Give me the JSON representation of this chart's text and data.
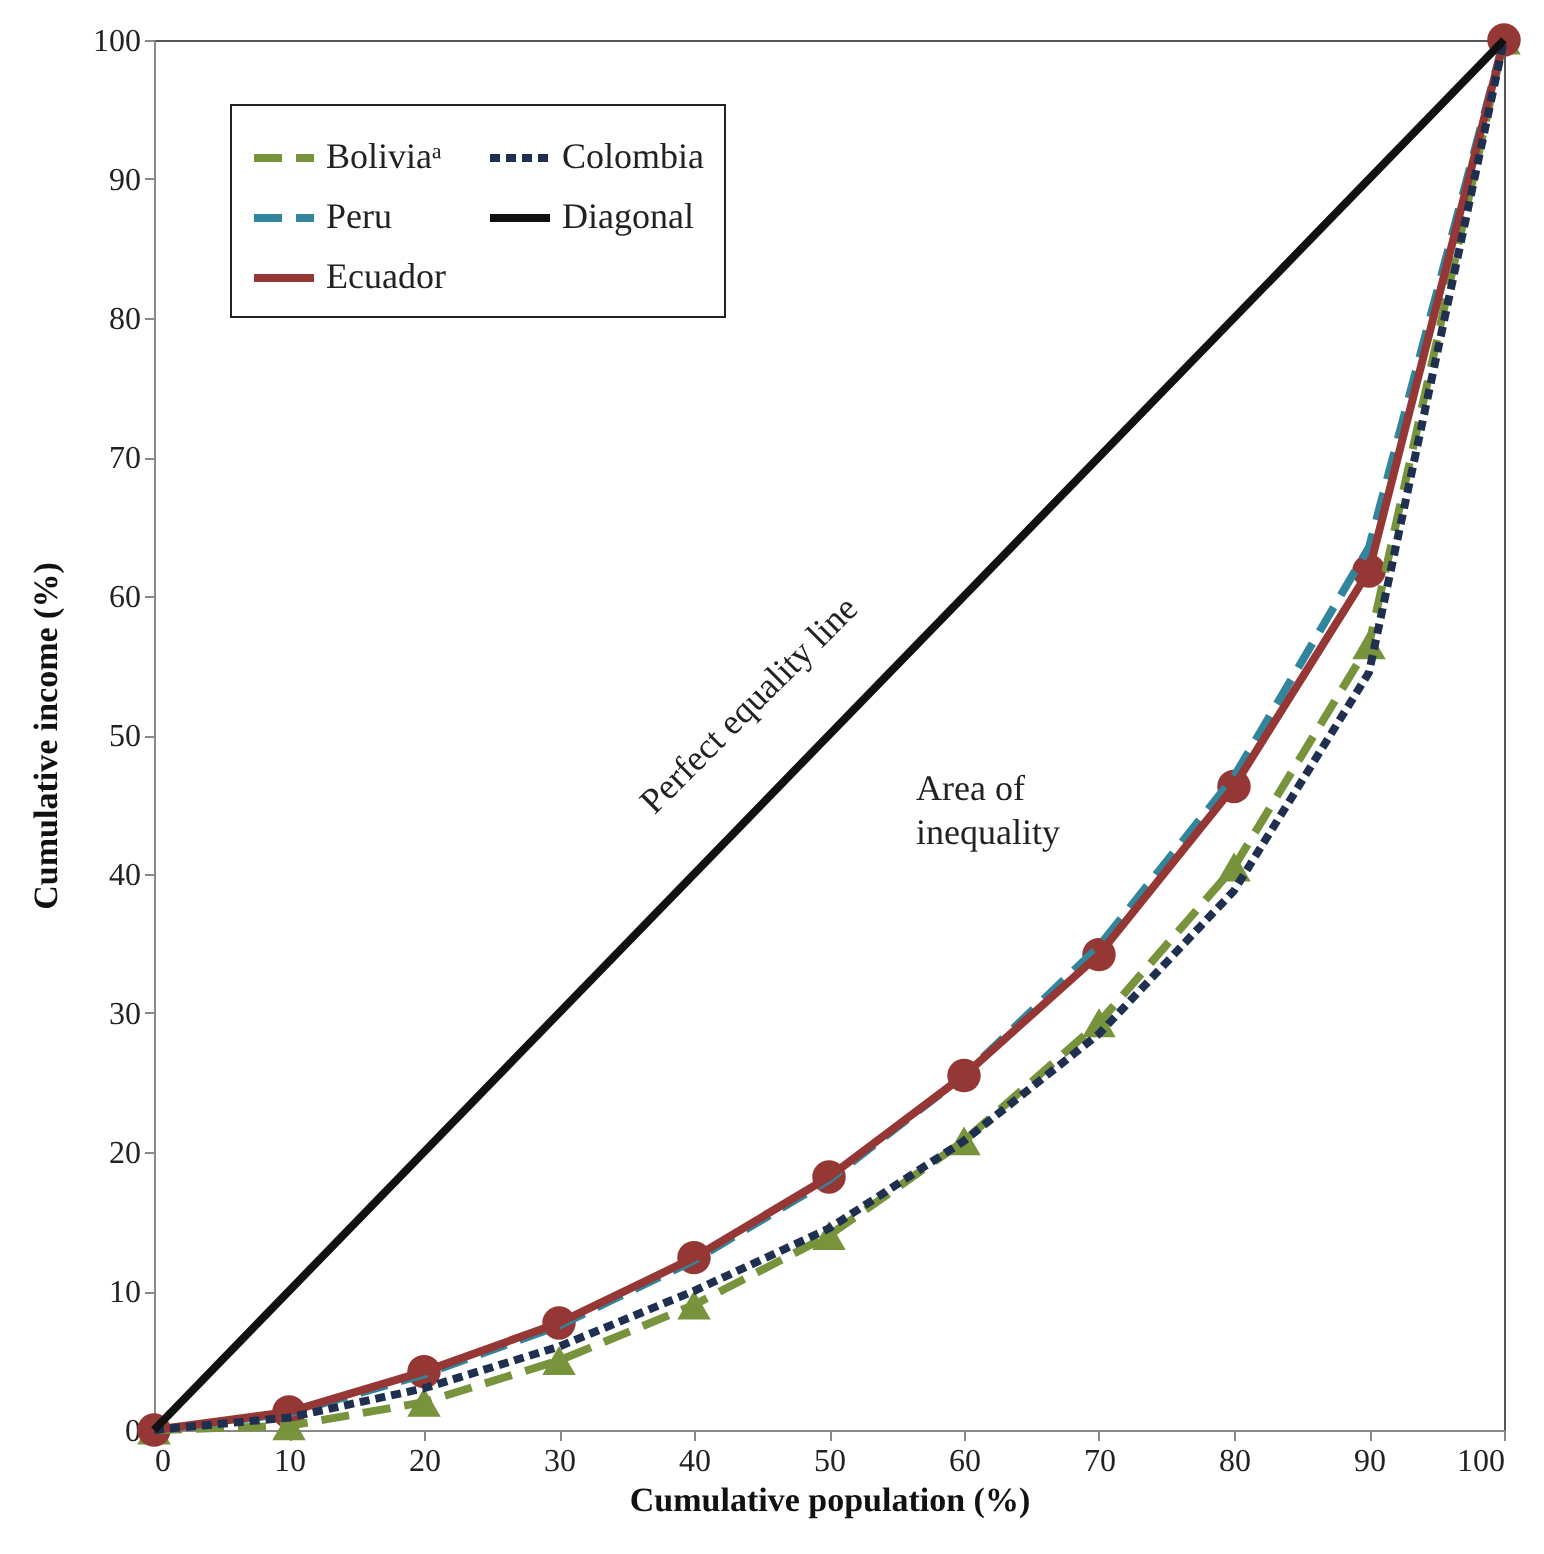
{
  "chart_data": {
    "type": "line",
    "xlabel": "Cumulative population (%)",
    "ylabel": "Cumulative income (%)",
    "xlim": [
      0,
      100
    ],
    "ylim": [
      0,
      100
    ],
    "xticks": [
      0,
      10,
      20,
      30,
      40,
      50,
      60,
      70,
      80,
      90,
      100
    ],
    "yticks": [
      0,
      10,
      20,
      30,
      40,
      50,
      60,
      70,
      80,
      90,
      100
    ],
    "x": [
      0,
      10,
      20,
      30,
      40,
      50,
      60,
      70,
      80,
      90,
      100
    ],
    "grid": false,
    "legend": "top left",
    "series": [
      {
        "name": "Boliviaᵃ",
        "color": "#77933c",
        "line_style": "dashed",
        "marker": "triangle",
        "values": [
          0,
          0.3,
          2,
          5,
          9,
          14,
          20.8,
          29.3,
          40.5,
          56.5,
          100
        ]
      },
      {
        "name": "Peru",
        "color": "#31859c",
        "line_style": "dashed",
        "marker": "none",
        "values": [
          0,
          1.2,
          4,
          7.5,
          12.2,
          18,
          25.5,
          34.8,
          47,
          63.5,
          100
        ]
      },
      {
        "name": "Ecuador",
        "color": "#953735",
        "line_style": "solid",
        "marker": "circle",
        "values": [
          0,
          1.3,
          4.2,
          7.7,
          12.4,
          18.2,
          25.5,
          34.2,
          46.3,
          61.8,
          100
        ]
      },
      {
        "name": "Colombia",
        "color": "#1f2f4f",
        "line_style": "dotted",
        "marker": "none",
        "values": [
          0,
          0.9,
          3,
          6,
          10,
          14.5,
          20.8,
          28.5,
          38.8,
          54.5,
          100
        ]
      },
      {
        "name": "Diagonal",
        "color": "#111111",
        "line_style": "solid",
        "marker": "none",
        "x": [
          0,
          100
        ],
        "values": [
          0,
          100
        ]
      }
    ],
    "annotations": [
      "Perfect equality line",
      "Area of inequality"
    ]
  }
}
